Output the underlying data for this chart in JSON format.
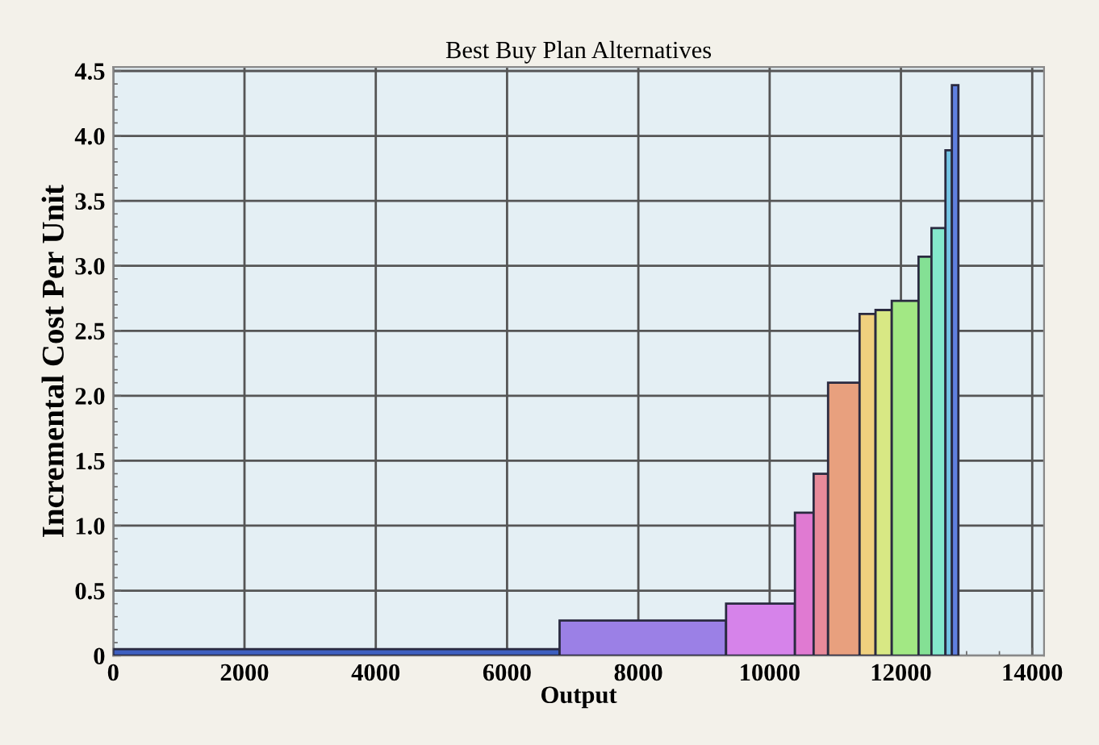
{
  "chart_data": {
    "type": "histogram",
    "title": "Best Buy Plan Alternatives",
    "xlabel": "Output",
    "ylabel": "Incremental Cost Per Unit",
    "bins": [
      0,
      6800,
      9336,
      10385,
      10670,
      10890,
      11370,
      11613,
      11860,
      12268,
      12465,
      12678,
      12776,
      12875
    ],
    "values": [
      0.05,
      0.27,
      0.4,
      1.1,
      1.4,
      2.1,
      2.63,
      2.66,
      2.73,
      3.07,
      3.29,
      3.89,
      4.39
    ],
    "colors": [
      "#3d5fc0",
      "#9b80e6",
      "#d683ea",
      "#e07ad2",
      "#e88a9a",
      "#e8a07e",
      "#f0d07e",
      "#d8e884",
      "#a2e884",
      "#84e094",
      "#84e8cc",
      "#74c4e4",
      "#6080e0"
    ],
    "xlim": [
      0,
      14180
    ],
    "ylim": [
      0,
      4.53
    ],
    "xticks": [
      0,
      2000,
      4000,
      6000,
      8000,
      10000,
      12000,
      14000
    ],
    "yticks": [
      0,
      {
        "value": 0.5,
        "label": "0.5"
      },
      {
        "value": 1.0,
        "label": "1.0"
      },
      {
        "value": 1.5,
        "label": "1.5"
      },
      {
        "value": 2.0,
        "label": "2.0"
      },
      {
        "value": 2.5,
        "label": "2.5"
      },
      {
        "value": 3.0,
        "label": "3.0"
      },
      {
        "value": 3.5,
        "label": "3.5"
      },
      {
        "value": 4.0,
        "label": "4.0"
      },
      {
        "value": 4.5,
        "label": "4.5"
      }
    ],
    "grid": true
  }
}
